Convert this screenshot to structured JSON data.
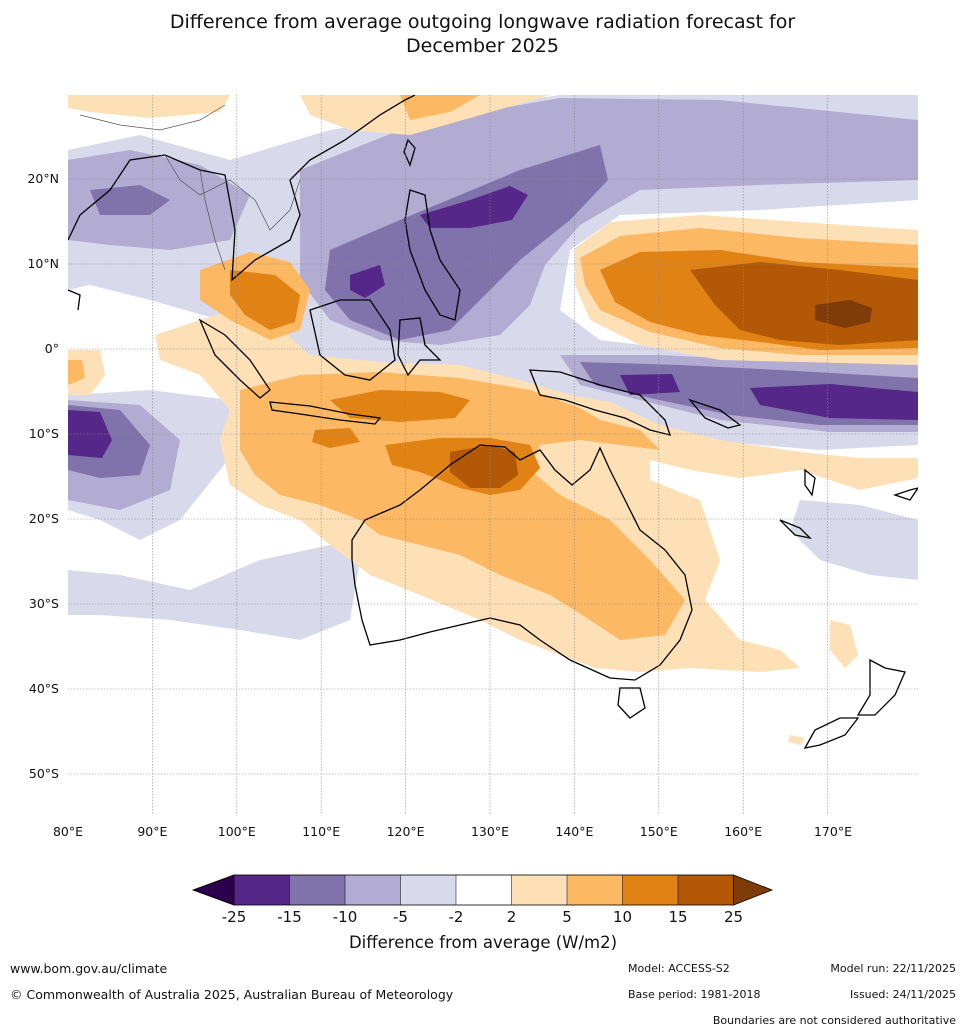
{
  "title": {
    "line1": "Difference from average outgoing longwave radiation forecast for",
    "line2": "December 2025"
  },
  "map": {
    "lon_labels": [
      "80°E",
      "90°E",
      "100°E",
      "110°E",
      "120°E",
      "130°E",
      "140°E",
      "150°E",
      "160°E",
      "170°E"
    ],
    "lat_labels": [
      "20°N",
      "10°N",
      "0°",
      "10°S",
      "20°S",
      "30°S",
      "40°S",
      "50°S"
    ],
    "lon_range": [
      80,
      180
    ],
    "lat_range": [
      -55,
      30
    ]
  },
  "colorbar": {
    "ticks": [
      "-25",
      "-15",
      "-10",
      "-5",
      "-2",
      "2",
      "5",
      "10",
      "15",
      "25"
    ],
    "label": "Difference from average (W/m2)",
    "colors": {
      "below_min": "#2d004b",
      "lt_m15": "#542788",
      "m15_m10": "#8073ac",
      "m10_m5": "#b2abd2",
      "m5_m2": "#d8daeb",
      "neutral": "#ffffff",
      "p2_p5": "#fee0b6",
      "p5_p10": "#fdb863",
      "p10_p15": "#e08214",
      "p15_p25": "#b35806",
      "above_max": "#7f3b08"
    }
  },
  "footer": {
    "website": "www.bom.gov.au/climate",
    "copyright": "© Commonwealth of Australia 2025, Australian Bureau of Meteorology",
    "model": "Model: ACCESS-S2",
    "base_period": "Base period: 1981-2018",
    "model_run": "Model run: 22/11/2025",
    "issued": "Issued: 24/11/2025",
    "disclaimer": "Boundaries are not considered authoritative"
  }
}
